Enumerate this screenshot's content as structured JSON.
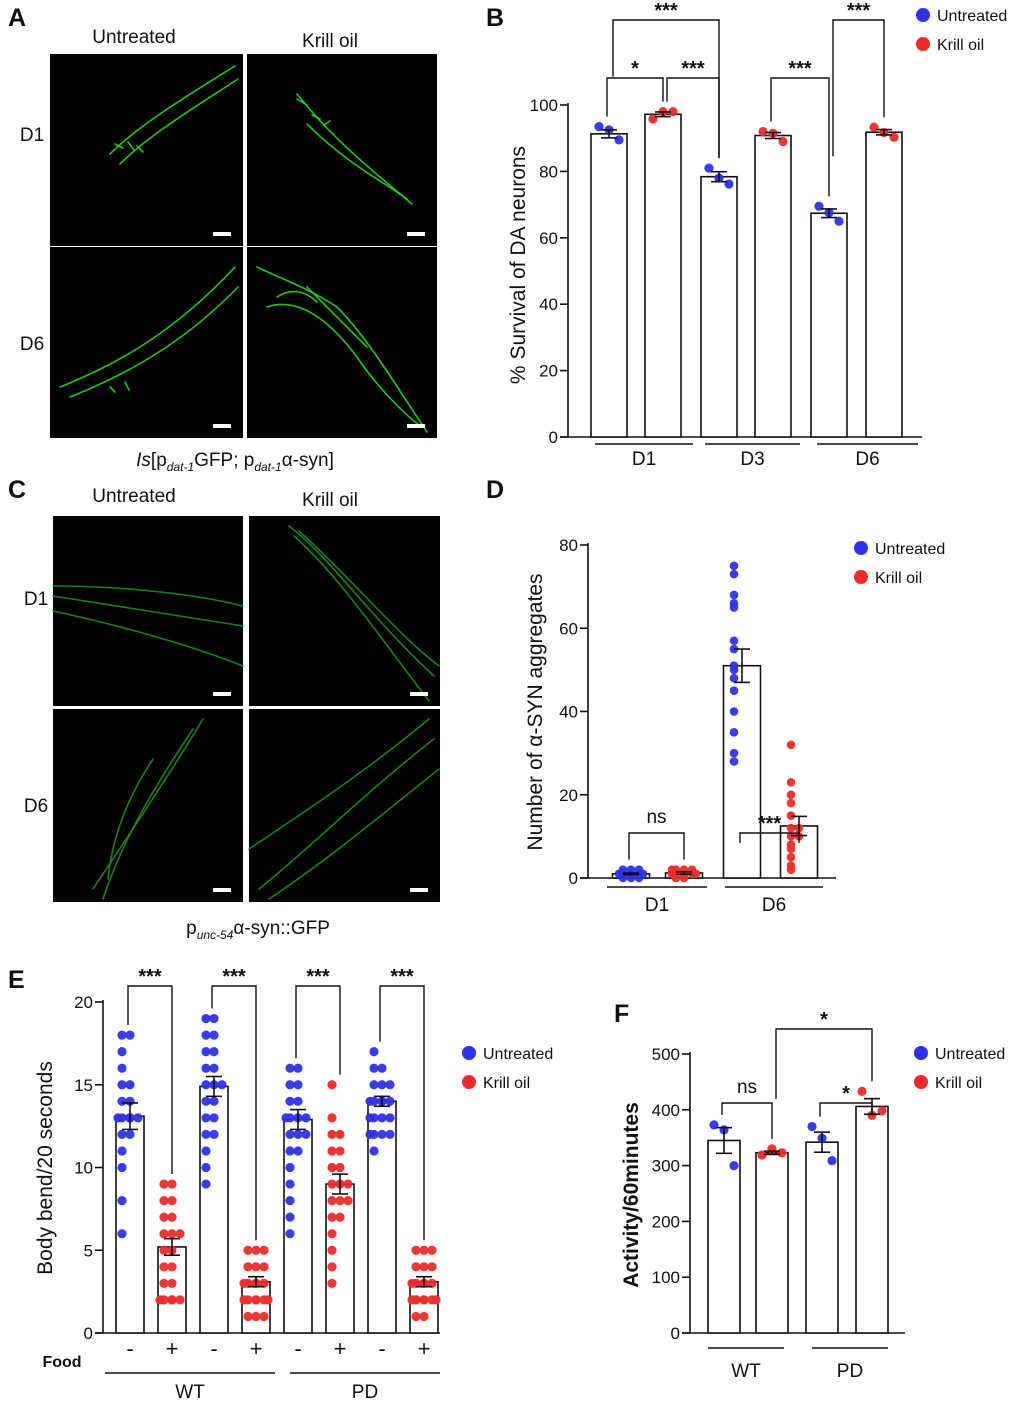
{
  "colors": {
    "untreated": "#2f2ff0",
    "krill": "#f02a2a",
    "micrograph_bg": "#000000",
    "gfp": "#22dd22",
    "gfp_dim": "#1f8f1f"
  },
  "panel_letters": [
    "A",
    "B",
    "C",
    "D",
    "E",
    "F"
  ],
  "panelA": {
    "col_labels": [
      "Untreated",
      "Krill oil"
    ],
    "row_labels": [
      "D1",
      "D6"
    ],
    "caption": {
      "pre": "Is",
      "open": "[p",
      "sub1": "dat-1",
      "mid": "GFP; p",
      "sub2": "dat-1",
      "post": "α-syn]"
    }
  },
  "panelC": {
    "col_labels": [
      "Untreated",
      "Krill oil"
    ],
    "row_labels": [
      "D1",
      "D6"
    ],
    "caption": {
      "pre": "p",
      "sub": "unc-54",
      "post": "α-syn::GFP"
    }
  },
  "legend": {
    "untreated": "Untreated",
    "krill": "Krill oil"
  },
  "chart_data": [
    {
      "id": "B",
      "type": "bar",
      "ylabel": "% Survival of DA neurons",
      "ylim": [
        0,
        100
      ],
      "yticks": [
        0,
        20,
        40,
        60,
        80,
        100
      ],
      "groups": [
        "D1",
        "D3",
        "D6"
      ],
      "series_order": [
        "Untreated",
        "Krill oil",
        "Untreated",
        "Krill oil",
        "Untreated",
        "Krill oil"
      ],
      "means": [
        91.3,
        97.2,
        78.4,
        90.8,
        67.4,
        91.8
      ],
      "sem": [
        1.2,
        0.7,
        1.5,
        0.9,
        1.3,
        0.8
      ],
      "points": [
        [
          93.5,
          92.5,
          89.5
        ],
        [
          95.8,
          98,
          98
        ],
        [
          81,
          78,
          76.2
        ],
        [
          92,
          91.5,
          89
        ],
        [
          69.5,
          67.6,
          65
        ],
        [
          93.3,
          91.7,
          90.3
        ]
      ],
      "comparisons": [
        {
          "label": "*",
          "from": 0,
          "to": 1,
          "level": 1
        },
        {
          "label": "***",
          "from": 1,
          "to": 2,
          "level": 1
        },
        {
          "label": "***",
          "from": 0,
          "to": 2,
          "level": 2
        },
        {
          "label": "***",
          "from": 3,
          "to": 4,
          "level": 1
        },
        {
          "label": "***",
          "from": 4,
          "to": 5,
          "level": 2
        }
      ],
      "legend": "top-right"
    },
    {
      "id": "D",
      "type": "bar",
      "ylabel": "Number of α-SYN aggregates",
      "ylim": [
        0,
        80
      ],
      "yticks": [
        0,
        20,
        40,
        60,
        80
      ],
      "groups": [
        "D1",
        "D6"
      ],
      "series_order": [
        "Untreated",
        "Krill oil",
        "Untreated",
        "Krill oil"
      ],
      "means": [
        1.0,
        1.2,
        51,
        12.5
      ],
      "sem": [
        0.2,
        0.3,
        4,
        2.3
      ],
      "points": [
        [
          1,
          1,
          2,
          0,
          1,
          2,
          1,
          0,
          1,
          1,
          2,
          0,
          1
        ],
        [
          1,
          2,
          1,
          0,
          2,
          1,
          1,
          2,
          0,
          1,
          2,
          1,
          1
        ],
        [
          75,
          73,
          68,
          66,
          65,
          57,
          55,
          51,
          50,
          48,
          45,
          40,
          35,
          30,
          28
        ],
        [
          32,
          23,
          20,
          18,
          15,
          12,
          12,
          10,
          10,
          8,
          7,
          5,
          3,
          2
        ]
      ],
      "comparisons": [
        {
          "label": "ns",
          "from": 0,
          "to": 1,
          "level": 1
        },
        {
          "label": "***",
          "from": 2,
          "to": 3,
          "level": 1
        }
      ],
      "legend": "top-right"
    },
    {
      "id": "E",
      "type": "bar",
      "ylabel": "Body bend/20 seconds",
      "ylim": [
        0,
        20
      ],
      "yticks": [
        0,
        5,
        10,
        15,
        20
      ],
      "groups": [
        "WT",
        "PD"
      ],
      "xrow_title": "Food",
      "food": [
        "-",
        "+",
        "-",
        "+",
        "-",
        "+",
        "-",
        "+"
      ],
      "series_order": [
        "Untreated",
        "Krill oil",
        "Untreated",
        "Krill oil",
        "Untreated",
        "Krill oil",
        "Untreated",
        "Krill oil"
      ],
      "means": [
        13.1,
        5.2,
        14.9,
        3.1,
        12.9,
        9.0,
        14.0,
        3.1
      ],
      "sem": [
        0.8,
        0.5,
        0.6,
        0.3,
        0.6,
        0.6,
        0.3,
        0.3
      ],
      "points": [
        [
          18,
          18,
          17,
          16,
          15,
          15,
          14,
          14,
          13,
          13,
          13,
          13,
          13,
          12,
          12,
          11,
          10,
          8,
          6
        ],
        [
          9,
          9,
          8,
          8,
          7,
          7,
          6,
          6,
          6,
          5,
          5,
          4,
          4,
          3,
          3,
          2,
          2,
          2,
          2,
          2
        ],
        [
          19,
          19,
          18,
          18,
          17,
          17,
          16,
          16,
          15,
          15,
          15,
          14,
          14,
          13,
          13,
          12,
          12,
          11,
          10,
          9
        ],
        [
          5,
          5,
          5,
          4,
          4,
          4,
          3,
          3,
          3,
          3,
          3,
          2,
          2,
          2,
          2,
          2,
          2,
          1,
          1,
          1
        ],
        [
          16,
          16,
          15,
          15,
          14,
          14,
          13,
          13,
          13,
          13,
          12,
          12,
          12,
          11,
          11,
          10,
          9,
          8,
          7,
          6
        ],
        [
          15,
          13,
          12,
          12,
          11,
          11,
          10,
          10,
          9,
          9,
          9,
          8,
          8,
          8,
          7,
          7,
          6,
          5,
          4,
          3
        ],
        [
          17,
          16,
          16,
          15,
          15,
          15,
          14,
          14,
          14,
          14,
          14,
          13,
          13,
          13,
          13,
          12,
          12,
          12,
          12,
          11
        ],
        [
          5,
          5,
          5,
          4,
          4,
          4,
          3,
          3,
          3,
          3,
          3,
          2,
          2,
          2,
          2,
          2,
          2,
          2,
          1,
          1
        ]
      ],
      "comparisons": [
        {
          "label": "***",
          "from": 0,
          "to": 1,
          "level": 1
        },
        {
          "label": "***",
          "from": 2,
          "to": 3,
          "level": 1
        },
        {
          "label": "***",
          "from": 4,
          "to": 5,
          "level": 1
        },
        {
          "label": "***",
          "from": 6,
          "to": 7,
          "level": 1
        }
      ],
      "legend": "top-right"
    },
    {
      "id": "F",
      "type": "bar",
      "ylabel": "Activity/60minutes",
      "ylim": [
        0,
        500
      ],
      "yticks": [
        0,
        100,
        200,
        300,
        400,
        500
      ],
      "groups": [
        "WT",
        "PD"
      ],
      "series_order": [
        "Untreated",
        "Krill oil",
        "Untreated",
        "Krill oil"
      ],
      "means": [
        345,
        323,
        342,
        406
      ],
      "sem": [
        23,
        3,
        18,
        14
      ],
      "points": [
        [
          373,
          364,
          300
        ],
        [
          319,
          330,
          323
        ],
        [
          370,
          349,
          309
        ],
        [
          433,
          390,
          398
        ]
      ],
      "comparisons": [
        {
          "label": "ns",
          "from": 0,
          "to": 1,
          "level": 1
        },
        {
          "label": "*",
          "from": 2,
          "to": 3,
          "level": 1
        },
        {
          "label": "*",
          "from": 1,
          "to": 3,
          "level": 2
        }
      ],
      "legend": "top-right"
    }
  ]
}
